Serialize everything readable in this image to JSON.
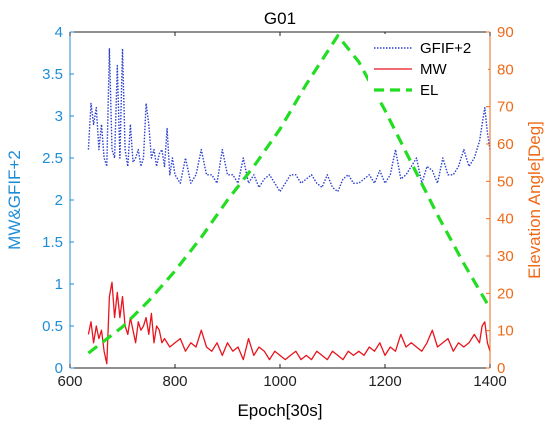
{
  "chart_data": {
    "type": "line",
    "title": "G01",
    "xlabel": "Epoch[30s]",
    "ylabel_left": "MW&GFIF+2",
    "ylabel_right": "Elevation Angle[Deg]",
    "xlim": [
      600,
      1400
    ],
    "ylim_left": [
      0,
      4
    ],
    "ylim_right": [
      0,
      90
    ],
    "x_ticks": [
      "600",
      "800",
      "1000",
      "1200",
      "1400"
    ],
    "y_left_ticks": [
      "0",
      "0.5",
      "1",
      "1.5",
      "2",
      "2.5",
      "3",
      "3.5",
      "4"
    ],
    "y_right_ticks": [
      "0",
      "10",
      "20",
      "30",
      "40",
      "50",
      "60",
      "70",
      "80",
      "90"
    ],
    "legend_placement": "top-right",
    "colors": {
      "gfif": "#2b3fcf",
      "mw": "#e8141e",
      "el": "#22dd22",
      "left_axis": "#1f8dd6",
      "right_axis": "#ee6a18"
    },
    "series": [
      {
        "name": "GFIF+2",
        "axis": "left",
        "style": "dotted",
        "x": [
          635,
          640,
          645,
          650,
          655,
          660,
          665,
          670,
          675,
          680,
          685,
          690,
          695,
          700,
          705,
          710,
          715,
          720,
          725,
          730,
          735,
          740,
          745,
          750,
          755,
          760,
          765,
          770,
          775,
          780,
          785,
          790,
          795,
          800,
          810,
          820,
          830,
          840,
          850,
          860,
          870,
          880,
          890,
          900,
          910,
          920,
          930,
          940,
          950,
          960,
          970,
          980,
          990,
          1000,
          1010,
          1020,
          1030,
          1040,
          1050,
          1060,
          1070,
          1080,
          1090,
          1100,
          1110,
          1120,
          1130,
          1140,
          1150,
          1160,
          1170,
          1180,
          1190,
          1200,
          1210,
          1220,
          1230,
          1240,
          1250,
          1260,
          1270,
          1280,
          1290,
          1300,
          1310,
          1320,
          1330,
          1340,
          1350,
          1360,
          1370,
          1380,
          1385,
          1390,
          1395,
          1400
        ],
        "y": [
          2.6,
          3.15,
          2.9,
          3.1,
          2.6,
          2.9,
          2.5,
          2.4,
          3.8,
          2.6,
          2.5,
          3.6,
          2.5,
          3.8,
          2.6,
          2.4,
          2.9,
          2.45,
          2.5,
          2.6,
          2.4,
          2.5,
          3.15,
          2.9,
          2.5,
          2.6,
          2.4,
          2.55,
          2.6,
          2.4,
          2.85,
          2.3,
          2.5,
          2.3,
          2.2,
          2.5,
          2.2,
          2.3,
          2.6,
          2.3,
          2.3,
          2.2,
          2.6,
          2.3,
          2.3,
          2.2,
          2.5,
          2.2,
          2.3,
          2.15,
          2.25,
          2.3,
          2.2,
          2.1,
          2.2,
          2.3,
          2.3,
          2.2,
          2.25,
          2.3,
          2.2,
          2.15,
          2.3,
          2.15,
          2.1,
          2.25,
          2.3,
          2.2,
          2.2,
          2.25,
          2.3,
          2.2,
          2.35,
          2.2,
          2.3,
          2.6,
          2.25,
          2.3,
          2.4,
          2.5,
          2.2,
          2.4,
          2.35,
          2.2,
          2.5,
          2.3,
          2.3,
          2.4,
          2.6,
          2.4,
          2.5,
          2.7,
          2.9,
          3.1,
          2.8,
          2.6
        ]
      },
      {
        "name": "MW",
        "axis": "left",
        "style": "solid",
        "x": [
          635,
          640,
          645,
          650,
          655,
          660,
          665,
          670,
          675,
          680,
          685,
          690,
          695,
          700,
          705,
          710,
          715,
          720,
          725,
          730,
          735,
          740,
          745,
          750,
          755,
          760,
          765,
          770,
          775,
          780,
          790,
          800,
          810,
          820,
          830,
          840,
          850,
          860,
          870,
          880,
          890,
          900,
          910,
          920,
          930,
          940,
          950,
          960,
          970,
          980,
          990,
          1000,
          1010,
          1020,
          1030,
          1040,
          1050,
          1060,
          1070,
          1080,
          1090,
          1100,
          1110,
          1120,
          1130,
          1140,
          1150,
          1160,
          1170,
          1180,
          1190,
          1200,
          1210,
          1220,
          1230,
          1240,
          1250,
          1260,
          1270,
          1280,
          1290,
          1300,
          1310,
          1320,
          1330,
          1340,
          1350,
          1360,
          1370,
          1380,
          1385,
          1390,
          1395,
          1400
        ],
        "y": [
          0.4,
          0.55,
          0.3,
          0.5,
          0.35,
          0.45,
          0.2,
          0.05,
          0.85,
          1.02,
          0.6,
          0.9,
          0.6,
          0.85,
          0.5,
          0.4,
          0.6,
          0.45,
          0.3,
          0.55,
          0.45,
          0.5,
          0.6,
          0.4,
          0.65,
          0.3,
          0.5,
          0.45,
          0.3,
          0.35,
          0.25,
          0.3,
          0.35,
          0.2,
          0.3,
          0.25,
          0.45,
          0.25,
          0.2,
          0.3,
          0.15,
          0.3,
          0.2,
          0.25,
          0.1,
          0.35,
          0.15,
          0.25,
          0.2,
          0.1,
          0.2,
          0.15,
          0.1,
          0.15,
          0.2,
          0.1,
          0.15,
          0.1,
          0.2,
          0.15,
          0.1,
          0.2,
          0.15,
          0.1,
          0.2,
          0.15,
          0.2,
          0.15,
          0.25,
          0.2,
          0.3,
          0.15,
          0.25,
          0.2,
          0.4,
          0.25,
          0.3,
          0.25,
          0.2,
          0.3,
          0.45,
          0.25,
          0.3,
          0.35,
          0.2,
          0.3,
          0.25,
          0.3,
          0.4,
          0.3,
          0.5,
          0.55,
          0.3,
          0.2
        ]
      },
      {
        "name": "EL",
        "axis": "right",
        "style": "dashed",
        "x": [
          635,
          700,
          750,
          800,
          850,
          900,
          950,
          1000,
          1050,
          1110,
          1150,
          1200,
          1250,
          1300,
          1350,
          1400
        ],
        "y": [
          4,
          11,
          18,
          26,
          35,
          45,
          54,
          64,
          76,
          89,
          82,
          69,
          55,
          41,
          28,
          16
        ]
      }
    ]
  }
}
